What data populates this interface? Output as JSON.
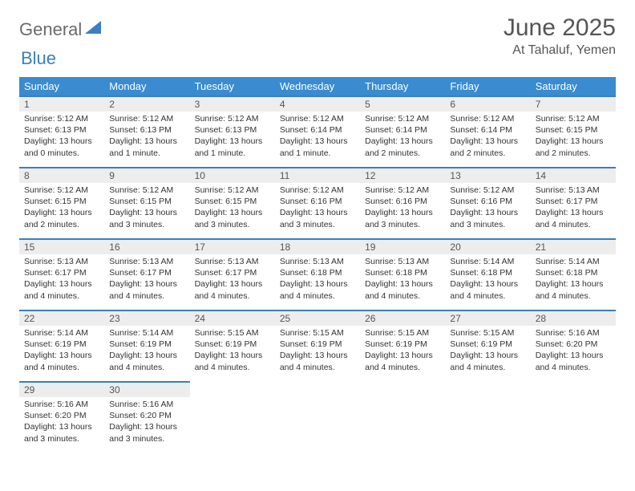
{
  "brand": {
    "part1": "General",
    "part2": "Blue"
  },
  "title": "June 2025",
  "location": "At Tahaluf, Yemen",
  "colors": {
    "header_bg": "#3a8bd0",
    "accent": "#3a7fc0",
    "daynum_bg": "#ededed",
    "text": "#333333"
  },
  "weekdays": [
    "Sunday",
    "Monday",
    "Tuesday",
    "Wednesday",
    "Thursday",
    "Friday",
    "Saturday"
  ],
  "weeks": [
    [
      {
        "n": "1",
        "sr": "Sunrise: 5:12 AM",
        "ss": "Sunset: 6:13 PM",
        "d1": "Daylight: 13 hours",
        "d2": "and 0 minutes."
      },
      {
        "n": "2",
        "sr": "Sunrise: 5:12 AM",
        "ss": "Sunset: 6:13 PM",
        "d1": "Daylight: 13 hours",
        "d2": "and 1 minute."
      },
      {
        "n": "3",
        "sr": "Sunrise: 5:12 AM",
        "ss": "Sunset: 6:13 PM",
        "d1": "Daylight: 13 hours",
        "d2": "and 1 minute."
      },
      {
        "n": "4",
        "sr": "Sunrise: 5:12 AM",
        "ss": "Sunset: 6:14 PM",
        "d1": "Daylight: 13 hours",
        "d2": "and 1 minute."
      },
      {
        "n": "5",
        "sr": "Sunrise: 5:12 AM",
        "ss": "Sunset: 6:14 PM",
        "d1": "Daylight: 13 hours",
        "d2": "and 2 minutes."
      },
      {
        "n": "6",
        "sr": "Sunrise: 5:12 AM",
        "ss": "Sunset: 6:14 PM",
        "d1": "Daylight: 13 hours",
        "d2": "and 2 minutes."
      },
      {
        "n": "7",
        "sr": "Sunrise: 5:12 AM",
        "ss": "Sunset: 6:15 PM",
        "d1": "Daylight: 13 hours",
        "d2": "and 2 minutes."
      }
    ],
    [
      {
        "n": "8",
        "sr": "Sunrise: 5:12 AM",
        "ss": "Sunset: 6:15 PM",
        "d1": "Daylight: 13 hours",
        "d2": "and 2 minutes."
      },
      {
        "n": "9",
        "sr": "Sunrise: 5:12 AM",
        "ss": "Sunset: 6:15 PM",
        "d1": "Daylight: 13 hours",
        "d2": "and 3 minutes."
      },
      {
        "n": "10",
        "sr": "Sunrise: 5:12 AM",
        "ss": "Sunset: 6:15 PM",
        "d1": "Daylight: 13 hours",
        "d2": "and 3 minutes."
      },
      {
        "n": "11",
        "sr": "Sunrise: 5:12 AM",
        "ss": "Sunset: 6:16 PM",
        "d1": "Daylight: 13 hours",
        "d2": "and 3 minutes."
      },
      {
        "n": "12",
        "sr": "Sunrise: 5:12 AM",
        "ss": "Sunset: 6:16 PM",
        "d1": "Daylight: 13 hours",
        "d2": "and 3 minutes."
      },
      {
        "n": "13",
        "sr": "Sunrise: 5:12 AM",
        "ss": "Sunset: 6:16 PM",
        "d1": "Daylight: 13 hours",
        "d2": "and 3 minutes."
      },
      {
        "n": "14",
        "sr": "Sunrise: 5:13 AM",
        "ss": "Sunset: 6:17 PM",
        "d1": "Daylight: 13 hours",
        "d2": "and 4 minutes."
      }
    ],
    [
      {
        "n": "15",
        "sr": "Sunrise: 5:13 AM",
        "ss": "Sunset: 6:17 PM",
        "d1": "Daylight: 13 hours",
        "d2": "and 4 minutes."
      },
      {
        "n": "16",
        "sr": "Sunrise: 5:13 AM",
        "ss": "Sunset: 6:17 PM",
        "d1": "Daylight: 13 hours",
        "d2": "and 4 minutes."
      },
      {
        "n": "17",
        "sr": "Sunrise: 5:13 AM",
        "ss": "Sunset: 6:17 PM",
        "d1": "Daylight: 13 hours",
        "d2": "and 4 minutes."
      },
      {
        "n": "18",
        "sr": "Sunrise: 5:13 AM",
        "ss": "Sunset: 6:18 PM",
        "d1": "Daylight: 13 hours",
        "d2": "and 4 minutes."
      },
      {
        "n": "19",
        "sr": "Sunrise: 5:13 AM",
        "ss": "Sunset: 6:18 PM",
        "d1": "Daylight: 13 hours",
        "d2": "and 4 minutes."
      },
      {
        "n": "20",
        "sr": "Sunrise: 5:14 AM",
        "ss": "Sunset: 6:18 PM",
        "d1": "Daylight: 13 hours",
        "d2": "and 4 minutes."
      },
      {
        "n": "21",
        "sr": "Sunrise: 5:14 AM",
        "ss": "Sunset: 6:18 PM",
        "d1": "Daylight: 13 hours",
        "d2": "and 4 minutes."
      }
    ],
    [
      {
        "n": "22",
        "sr": "Sunrise: 5:14 AM",
        "ss": "Sunset: 6:19 PM",
        "d1": "Daylight: 13 hours",
        "d2": "and 4 minutes."
      },
      {
        "n": "23",
        "sr": "Sunrise: 5:14 AM",
        "ss": "Sunset: 6:19 PM",
        "d1": "Daylight: 13 hours",
        "d2": "and 4 minutes."
      },
      {
        "n": "24",
        "sr": "Sunrise: 5:15 AM",
        "ss": "Sunset: 6:19 PM",
        "d1": "Daylight: 13 hours",
        "d2": "and 4 minutes."
      },
      {
        "n": "25",
        "sr": "Sunrise: 5:15 AM",
        "ss": "Sunset: 6:19 PM",
        "d1": "Daylight: 13 hours",
        "d2": "and 4 minutes."
      },
      {
        "n": "26",
        "sr": "Sunrise: 5:15 AM",
        "ss": "Sunset: 6:19 PM",
        "d1": "Daylight: 13 hours",
        "d2": "and 4 minutes."
      },
      {
        "n": "27",
        "sr": "Sunrise: 5:15 AM",
        "ss": "Sunset: 6:19 PM",
        "d1": "Daylight: 13 hours",
        "d2": "and 4 minutes."
      },
      {
        "n": "28",
        "sr": "Sunrise: 5:16 AM",
        "ss": "Sunset: 6:20 PM",
        "d1": "Daylight: 13 hours",
        "d2": "and 4 minutes."
      }
    ],
    [
      {
        "n": "29",
        "sr": "Sunrise: 5:16 AM",
        "ss": "Sunset: 6:20 PM",
        "d1": "Daylight: 13 hours",
        "d2": "and 3 minutes."
      },
      {
        "n": "30",
        "sr": "Sunrise: 5:16 AM",
        "ss": "Sunset: 6:20 PM",
        "d1": "Daylight: 13 hours",
        "d2": "and 3 minutes."
      },
      null,
      null,
      null,
      null,
      null
    ]
  ]
}
